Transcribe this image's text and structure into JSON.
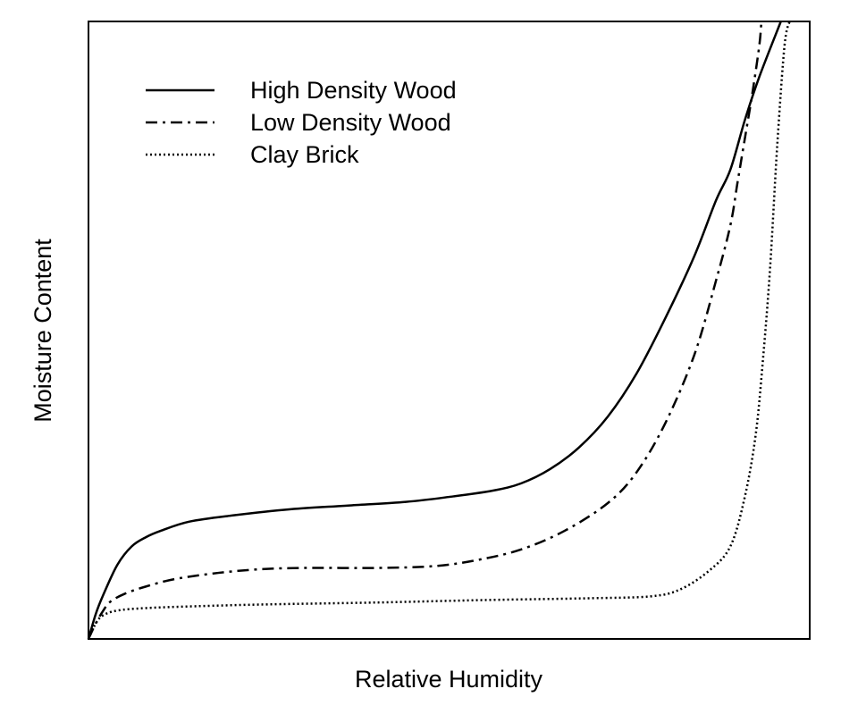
{
  "chart_data": {
    "type": "line",
    "title": "",
    "xlabel": "Relative Humidity",
    "ylabel": "Moisture Content",
    "xlim": [
      0,
      100
    ],
    "ylim": [
      0,
      100
    ],
    "x_ticks_shown": false,
    "y_ticks_shown": false,
    "grid": false,
    "legend": "top-left",
    "series": [
      {
        "name": "High Density Wood",
        "line_style": "solid",
        "color": "#000000",
        "points": [
          [
            0,
            0
          ],
          [
            1,
            4
          ],
          [
            2,
            7
          ],
          [
            4,
            12
          ],
          [
            6,
            15
          ],
          [
            8,
            16.5
          ],
          [
            10,
            17.5
          ],
          [
            14,
            19
          ],
          [
            20,
            20
          ],
          [
            28,
            21
          ],
          [
            36,
            21.6
          ],
          [
            44,
            22.2
          ],
          [
            50,
            23
          ],
          [
            56,
            24
          ],
          [
            60,
            25.2
          ],
          [
            64,
            27.5
          ],
          [
            68,
            31
          ],
          [
            72,
            36
          ],
          [
            76,
            43
          ],
          [
            80,
            52
          ],
          [
            84,
            62
          ],
          [
            87,
            71
          ],
          [
            89,
            76
          ],
          [
            91,
            84
          ],
          [
            93,
            91
          ],
          [
            96,
            100
          ]
        ]
      },
      {
        "name": "Low Density Wood",
        "line_style": "dash-dot",
        "color": "#000000",
        "points": [
          [
            0,
            0
          ],
          [
            1,
            2.5
          ],
          [
            2,
            4.5
          ],
          [
            3,
            6
          ],
          [
            5,
            7.3
          ],
          [
            8,
            8.5
          ],
          [
            12,
            9.7
          ],
          [
            18,
            10.7
          ],
          [
            24,
            11.3
          ],
          [
            30,
            11.5
          ],
          [
            40,
            11.5
          ],
          [
            48,
            11.8
          ],
          [
            54,
            12.8
          ],
          [
            60,
            14.5
          ],
          [
            66,
            17.5
          ],
          [
            72,
            22
          ],
          [
            76,
            27
          ],
          [
            80,
            35
          ],
          [
            84,
            46
          ],
          [
            87,
            58
          ],
          [
            89,
            67
          ],
          [
            90,
            74
          ],
          [
            91,
            81
          ],
          [
            92,
            88
          ],
          [
            93,
            96
          ],
          [
            93.3,
            100
          ]
        ]
      },
      {
        "name": "Clay Brick",
        "line_style": "dotted",
        "color": "#000000",
        "points": [
          [
            0,
            0
          ],
          [
            1,
            2.5
          ],
          [
            2,
            3.8
          ],
          [
            4,
            4.6
          ],
          [
            8,
            5
          ],
          [
            15,
            5.3
          ],
          [
            25,
            5.6
          ],
          [
            40,
            5.9
          ],
          [
            55,
            6.3
          ],
          [
            70,
            6.6
          ],
          [
            78,
            6.9
          ],
          [
            82,
            8
          ],
          [
            86,
            11
          ],
          [
            89,
            15
          ],
          [
            91,
            23
          ],
          [
            92.5,
            33
          ],
          [
            93.5,
            45
          ],
          [
            94.5,
            60
          ],
          [
            95.5,
            80
          ],
          [
            96.5,
            96
          ],
          [
            97.2,
            100
          ]
        ]
      }
    ]
  }
}
